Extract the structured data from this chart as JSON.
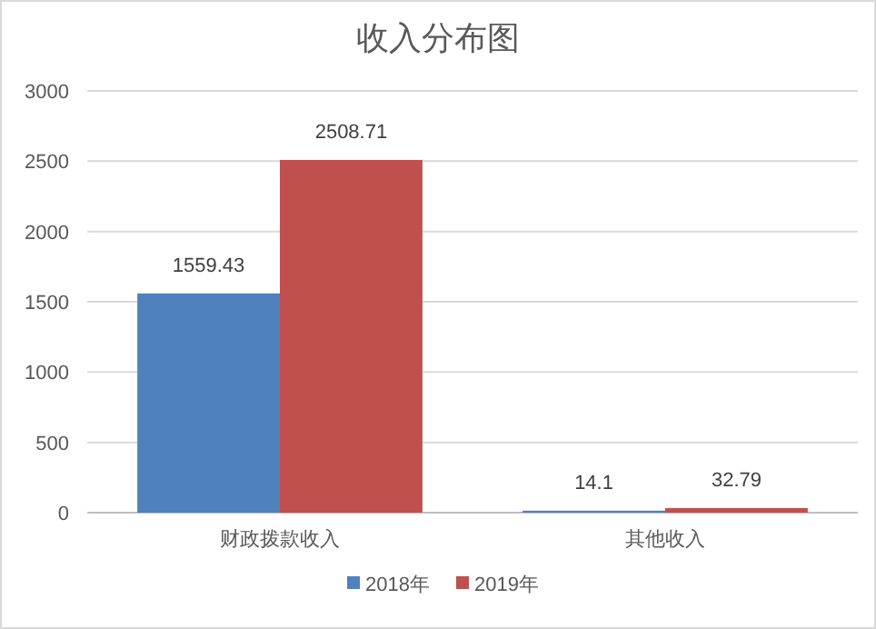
{
  "chart_data": {
    "type": "bar",
    "title": "收入分布图",
    "categories": [
      "财政拨款收入",
      "其他收入"
    ],
    "series": [
      {
        "name": "2018年",
        "color": "#4f81bd",
        "values": [
          1559.43,
          14.1
        ]
      },
      {
        "name": "2019年",
        "color": "#c0504d",
        "values": [
          2508.71,
          32.79
        ]
      }
    ],
    "ylim": [
      0,
      3000
    ],
    "yticks": [
      0,
      500,
      1000,
      1500,
      2000,
      2500,
      3000
    ],
    "grid": "y",
    "legend": "bottom",
    "data_labels": true
  }
}
